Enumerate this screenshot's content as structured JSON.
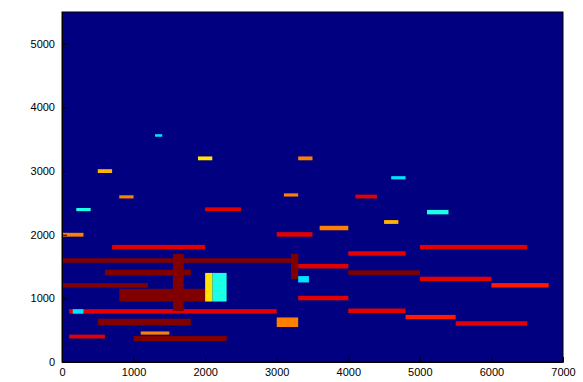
{
  "chart_data": {
    "type": "heatmap",
    "xlim": [
      0,
      7000
    ],
    "xticks": [
      0,
      1000,
      2000,
      3000,
      4000,
      5000,
      6000,
      7000
    ],
    "ylim": [
      0,
      5500
    ],
    "yticks": [
      0,
      1000,
      2000,
      3000,
      4000,
      5000
    ],
    "clim": [
      0,
      1
    ],
    "cells": [
      {
        "x0": 100,
        "x1": 600,
        "y0": 370,
        "y1": 430,
        "value": 0.9
      },
      {
        "x0": 1000,
        "x1": 2300,
        "y0": 330,
        "y1": 410,
        "value": 1.0
      },
      {
        "x0": 1100,
        "x1": 1500,
        "y0": 430,
        "y1": 480,
        "value": 0.75
      },
      {
        "x0": 500,
        "x1": 1800,
        "y0": 580,
        "y1": 680,
        "value": 1.0
      },
      {
        "x0": 100,
        "x1": 3000,
        "y0": 760,
        "y1": 830,
        "value": 0.9
      },
      {
        "x0": 150,
        "x1": 300,
        "y0": 760,
        "y1": 830,
        "value": 0.35
      },
      {
        "x0": 800,
        "x1": 2000,
        "y0": 950,
        "y1": 1150,
        "value": 1.0
      },
      {
        "x0": 0,
        "x1": 1200,
        "y0": 1170,
        "y1": 1240,
        "value": 1.0
      },
      {
        "x0": 600,
        "x1": 1800,
        "y0": 1360,
        "y1": 1450,
        "value": 1.0
      },
      {
        "x0": 0,
        "x1": 3300,
        "y0": 1560,
        "y1": 1630,
        "value": 1.0
      },
      {
        "x0": 700,
        "x1": 2000,
        "y0": 1770,
        "y1": 1840,
        "value": 0.9
      },
      {
        "x0": 2100,
        "x1": 2300,
        "y0": 950,
        "y1": 1400,
        "value": 0.4
      },
      {
        "x0": 2000,
        "x1": 2100,
        "y0": 950,
        "y1": 1400,
        "value": 0.65
      },
      {
        "x0": 1550,
        "x1": 1700,
        "y0": 800,
        "y1": 1700,
        "value": 1.0
      },
      {
        "x0": 3200,
        "x1": 3300,
        "y0": 1300,
        "y1": 1700,
        "value": 1.0
      },
      {
        "x0": 3300,
        "x1": 3450,
        "y0": 1250,
        "y1": 1350,
        "value": 0.35
      },
      {
        "x0": 0,
        "x1": 300,
        "y0": 1970,
        "y1": 2030,
        "value": 0.75
      },
      {
        "x0": 2000,
        "x1": 2500,
        "y0": 2370,
        "y1": 2430,
        "value": 0.9
      },
      {
        "x0": 5100,
        "x1": 5400,
        "y0": 2320,
        "y1": 2390,
        "value": 0.4
      },
      {
        "x0": 500,
        "x1": 700,
        "y0": 2970,
        "y1": 3030,
        "value": 0.7
      },
      {
        "x0": 1900,
        "x1": 2100,
        "y0": 3170,
        "y1": 3230,
        "value": 0.65
      },
      {
        "x0": 3300,
        "x1": 3500,
        "y0": 3170,
        "y1": 3230,
        "value": 0.75
      },
      {
        "x0": 1300,
        "x1": 1400,
        "y0": 3540,
        "y1": 3580,
        "value": 0.35
      },
      {
        "x0": 3300,
        "x1": 4000,
        "y0": 970,
        "y1": 1040,
        "value": 0.9
      },
      {
        "x0": 4000,
        "x1": 4800,
        "y0": 770,
        "y1": 840,
        "value": 0.9
      },
      {
        "x0": 4800,
        "x1": 5500,
        "y0": 670,
        "y1": 740,
        "value": 0.85
      },
      {
        "x0": 5500,
        "x1": 6500,
        "y0": 570,
        "y1": 640,
        "value": 0.9
      },
      {
        "x0": 3000,
        "x1": 3300,
        "y0": 550,
        "y1": 700,
        "value": 0.75
      },
      {
        "x0": 3300,
        "x1": 4000,
        "y0": 1470,
        "y1": 1540,
        "value": 0.9
      },
      {
        "x0": 4000,
        "x1": 5000,
        "y0": 1370,
        "y1": 1440,
        "value": 1.0
      },
      {
        "x0": 5000,
        "x1": 6000,
        "y0": 1270,
        "y1": 1340,
        "value": 0.9
      },
      {
        "x0": 6000,
        "x1": 6800,
        "y0": 1170,
        "y1": 1240,
        "value": 0.85
      },
      {
        "x0": 5000,
        "x1": 6500,
        "y0": 1770,
        "y1": 1840,
        "value": 0.9
      },
      {
        "x0": 3000,
        "x1": 3500,
        "y0": 1970,
        "y1": 2040,
        "value": 0.9
      },
      {
        "x0": 3600,
        "x1": 4000,
        "y0": 2070,
        "y1": 2140,
        "value": 0.75
      },
      {
        "x0": 4000,
        "x1": 4800,
        "y0": 1670,
        "y1": 1740,
        "value": 0.9
      },
      {
        "x0": 4100,
        "x1": 4400,
        "y0": 2570,
        "y1": 2630,
        "value": 0.9
      },
      {
        "x0": 4500,
        "x1": 4700,
        "y0": 2170,
        "y1": 2230,
        "value": 0.7
      },
      {
        "x0": 800,
        "x1": 1000,
        "y0": 2570,
        "y1": 2620,
        "value": 0.75
      },
      {
        "x0": 200,
        "x1": 400,
        "y0": 2370,
        "y1": 2420,
        "value": 0.4
      },
      {
        "x0": 3100,
        "x1": 3300,
        "y0": 2600,
        "y1": 2650,
        "value": 0.75
      },
      {
        "x0": 4600,
        "x1": 4800,
        "y0": 2870,
        "y1": 2920,
        "value": 0.35
      }
    ]
  }
}
